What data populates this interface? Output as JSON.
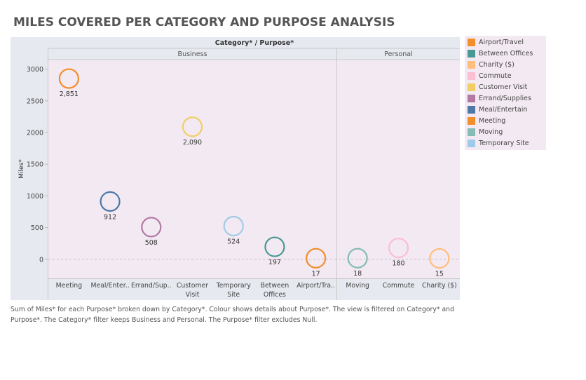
{
  "title": "MILES COVERED PER CATEGORY AND PURPOSE ANALYSIS",
  "header": "Category* / Purpose*",
  "footnote": "Sum of Miles* for each Purpose* broken down by Category*.  Colour shows details about Purpose*. The view is filtered on Category* and Purpose*. The Category* filter keeps Business and Personal. The Purpose* filter excludes Null.",
  "colors": {
    "Airport/Travel": "#f28e2b",
    "Between Offices": "#499894",
    "Charity ($)": "#ffbe7d",
    "Commute": "#fabfd2",
    "Customer Visit": "#f1ce63",
    "Errand/Supplies": "#b07aa1",
    "Meal/Entertain": "#4e79a7",
    "Meeting": "#f28e2b",
    "Moving": "#86bcb6",
    "Temporary Site": "#a0cbe8"
  },
  "chart_data": {
    "type": "scatter",
    "title": "MILES COVERED PER CATEGORY AND PURPOSE ANALYSIS",
    "ylabel": "Miles*",
    "ylim": [
      -300,
      3150
    ],
    "yticks": [
      0,
      500,
      1000,
      1500,
      2000,
      2500,
      3000
    ],
    "grid": false,
    "legend_position": "right",
    "legend": [
      "Airport/Travel",
      "Between Offices",
      "Charity ($)",
      "Commute",
      "Customer Visit",
      "Errand/Supplies",
      "Meal/Entertain",
      "Meeting",
      "Moving",
      "Temporary Site"
    ],
    "panels": [
      {
        "name": "Business",
        "points": [
          {
            "purpose": "Meeting",
            "tick": "Meeting",
            "value": 2851,
            "label": "2,851"
          },
          {
            "purpose": "Meal/Entertain",
            "tick": "Meal/Enter..",
            "value": 912,
            "label": "912"
          },
          {
            "purpose": "Errand/Supplies",
            "tick": "Errand/Sup..",
            "value": 508,
            "label": "508"
          },
          {
            "purpose": "Customer Visit",
            "tick": "Customer Visit",
            "value": 2090,
            "label": "2,090"
          },
          {
            "purpose": "Temporary Site",
            "tick": "Temporary Site",
            "value": 524,
            "label": "524"
          },
          {
            "purpose": "Between Offices",
            "tick": "Between Offices",
            "value": 197,
            "label": "197"
          },
          {
            "purpose": "Airport/Travel",
            "tick": "Airport/Tra..",
            "value": 17,
            "label": "17"
          }
        ]
      },
      {
        "name": "Personal",
        "points": [
          {
            "purpose": "Moving",
            "tick": "Moving",
            "value": 18,
            "label": "18"
          },
          {
            "purpose": "Commute",
            "tick": "Commute",
            "value": 180,
            "label": "180"
          },
          {
            "purpose": "Charity ($)",
            "tick": "Charity ($)",
            "value": 15,
            "label": "15"
          }
        ]
      }
    ]
  }
}
